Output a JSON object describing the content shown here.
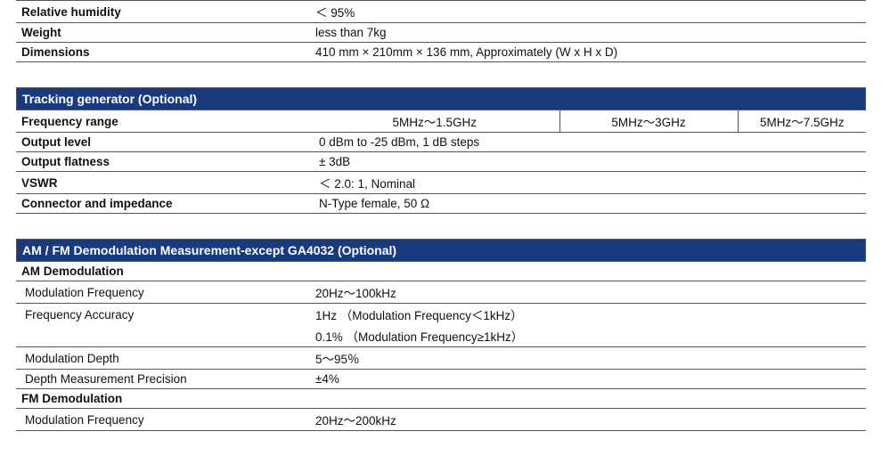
{
  "section1": {
    "rows": [
      {
        "label": "Relative humidity",
        "value": "＜ 95%"
      },
      {
        "label": "Weight",
        "value": "less than 7kg"
      },
      {
        "label": "Dimensions",
        "value": "410 mm × 210mm × 136 mm, Approximately (W x H x D)"
      }
    ]
  },
  "section2": {
    "title": "Tracking generator (Optional)",
    "freq_row": {
      "label": "Frequency range",
      "c1": "5MHz～1.5GHz",
      "c2": "5MHz～3GHz",
      "c3": "5MHz～7.5GHz"
    },
    "rows": [
      {
        "label": "Output level",
        "value": "0 dBm to -25 dBm, 1 dB steps"
      },
      {
        "label": "Output flatness",
        "value": "± 3dB"
      },
      {
        "label": "VSWR",
        "value": "＜ 2.0: 1, Nominal"
      },
      {
        "label": "Connector and impedance",
        "value": "N-Type  female, 50 Ω"
      }
    ]
  },
  "section3": {
    "title": "AM / FM Demodulation Measurement-except GA4032 (Optional)",
    "am_header": "AM Demodulation",
    "am_rows": [
      {
        "label": "Modulation Frequency",
        "value": "20Hz～100kHz"
      },
      {
        "label": "Frequency Accuracy",
        "value": "1Hz （Modulation Frequency＜1kHz）"
      },
      {
        "label": "",
        "value": "0.1% （Modulation Frequency≥1kHz）"
      },
      {
        "label": "Modulation Depth",
        "value": "5～95％"
      },
      {
        "label": "Depth Measurement Precision",
        "value": "±4%"
      }
    ],
    "fm_header": "FM Demodulation",
    "fm_rows": [
      {
        "label": "Modulation Frequency",
        "value": "20Hz～200kHz"
      }
    ]
  }
}
